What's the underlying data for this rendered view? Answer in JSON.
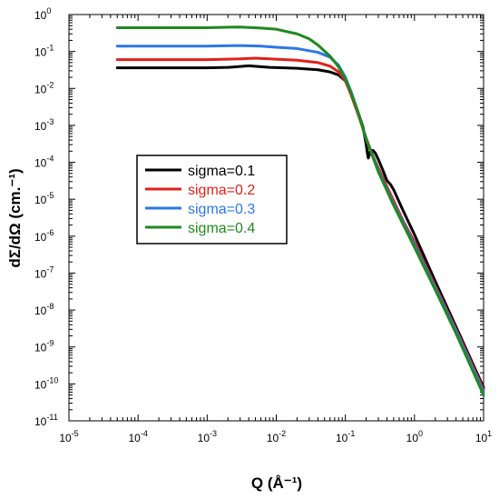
{
  "chart_data": {
    "type": "line",
    "xscale": "log",
    "yscale": "log",
    "xlim": [
      1e-05,
      10
    ],
    "ylim": [
      1e-11,
      1
    ],
    "xlabel": "Q (Å⁻¹)",
    "ylabel": "dΣ/dΩ (cm.⁻¹)",
    "grid": false,
    "legend_position": "center-left",
    "x_ticks": [
      {
        "value": 1e-05,
        "base": "10",
        "exp": "-5"
      },
      {
        "value": 0.0001,
        "base": "10",
        "exp": "-4"
      },
      {
        "value": 0.001,
        "base": "10",
        "exp": "-3"
      },
      {
        "value": 0.01,
        "base": "10",
        "exp": "-2"
      },
      {
        "value": 0.1,
        "base": "10",
        "exp": "-1"
      },
      {
        "value": 1,
        "base": "10",
        "exp": "0"
      },
      {
        "value": 10,
        "base": "10",
        "exp": "1"
      }
    ],
    "y_ticks": [
      {
        "value": 1,
        "base": "10",
        "exp": "0"
      },
      {
        "value": 0.1,
        "base": "10",
        "exp": "-1"
      },
      {
        "value": 0.01,
        "base": "10",
        "exp": "-2"
      },
      {
        "value": 0.001,
        "base": "10",
        "exp": "-3"
      },
      {
        "value": 0.0001,
        "base": "10",
        "exp": "-4"
      },
      {
        "value": 1e-05,
        "base": "10",
        "exp": "-5"
      },
      {
        "value": 1e-06,
        "base": "10",
        "exp": "-6"
      },
      {
        "value": 1e-07,
        "base": "10",
        "exp": "-7"
      },
      {
        "value": 1e-08,
        "base": "10",
        "exp": "-8"
      },
      {
        "value": 1e-09,
        "base": "10",
        "exp": "-9"
      },
      {
        "value": 1e-10,
        "base": "10",
        "exp": "-10"
      },
      {
        "value": 1e-11,
        "base": "10",
        "exp": "-11"
      }
    ],
    "series": [
      {
        "name": "sigma=0.1",
        "color": "#000000",
        "points": [
          [
            5e-05,
            0.036
          ],
          [
            0.001,
            0.036
          ],
          [
            0.002,
            0.037
          ],
          [
            0.004,
            0.041
          ],
          [
            0.008,
            0.037
          ],
          [
            0.02,
            0.035
          ],
          [
            0.04,
            0.032
          ],
          [
            0.06,
            0.028
          ],
          [
            0.08,
            0.023
          ],
          [
            0.1,
            0.016
          ],
          [
            0.12,
            0.008
          ],
          [
            0.15,
            0.0025
          ],
          [
            0.18,
            0.0009
          ],
          [
            0.2,
            0.0003
          ],
          [
            0.21,
            0.00016
          ],
          [
            0.215,
            0.00013
          ],
          [
            0.22,
            0.00015
          ],
          [
            0.23,
            0.00021
          ],
          [
            0.25,
            0.00021
          ],
          [
            0.27,
            0.00018
          ],
          [
            0.3,
            0.00012
          ],
          [
            0.35,
            6e-05
          ],
          [
            0.4,
            3.2e-05
          ],
          [
            0.45,
            2.5e-05
          ],
          [
            0.5,
            1.8e-05
          ],
          [
            0.7,
            4.5e-06
          ],
          [
            1,
            1.1e-06
          ],
          [
            2,
            6e-08
          ],
          [
            4,
            3.5e-09
          ],
          [
            10,
            8e-11
          ]
        ]
      },
      {
        "name": "sigma=0.2",
        "color": "#e0201b",
        "points": [
          [
            5e-05,
            0.06
          ],
          [
            0.001,
            0.06
          ],
          [
            0.003,
            0.063
          ],
          [
            0.005,
            0.066
          ],
          [
            0.01,
            0.062
          ],
          [
            0.02,
            0.058
          ],
          [
            0.04,
            0.05
          ],
          [
            0.06,
            0.04
          ],
          [
            0.08,
            0.028
          ],
          [
            0.1,
            0.016
          ],
          [
            0.12,
            0.007
          ],
          [
            0.15,
            0.0022
          ],
          [
            0.2,
            0.00045
          ],
          [
            0.25,
            0.00015
          ],
          [
            0.3,
            7e-05
          ],
          [
            0.4,
            2.2e-05
          ],
          [
            0.5,
            9e-06
          ],
          [
            0.7,
            2.4e-06
          ],
          [
            1,
            7e-07
          ],
          [
            2,
            4.5e-08
          ],
          [
            4,
            3e-09
          ],
          [
            10,
            7e-11
          ]
        ]
      },
      {
        "name": "sigma=0.3",
        "color": "#2b78e4",
        "points": [
          [
            5e-05,
            0.14
          ],
          [
            0.001,
            0.14
          ],
          [
            0.003,
            0.145
          ],
          [
            0.006,
            0.14
          ],
          [
            0.01,
            0.13
          ],
          [
            0.02,
            0.12
          ],
          [
            0.04,
            0.095
          ],
          [
            0.06,
            0.07
          ],
          [
            0.08,
            0.042
          ],
          [
            0.1,
            0.02
          ],
          [
            0.12,
            0.0085
          ],
          [
            0.15,
            0.0025
          ],
          [
            0.2,
            0.00042
          ],
          [
            0.3,
            6e-05
          ],
          [
            0.5,
            7.5e-06
          ],
          [
            1,
            5.8e-07
          ],
          [
            2,
            4e-08
          ],
          [
            4,
            2.7e-09
          ],
          [
            10,
            6e-11
          ]
        ]
      },
      {
        "name": "sigma=0.4",
        "color": "#1f8a1f",
        "points": [
          [
            5e-05,
            0.44
          ],
          [
            0.001,
            0.44
          ],
          [
            0.003,
            0.46
          ],
          [
            0.006,
            0.43
          ],
          [
            0.01,
            0.4
          ],
          [
            0.02,
            0.3
          ],
          [
            0.03,
            0.22
          ],
          [
            0.04,
            0.15
          ],
          [
            0.06,
            0.075
          ],
          [
            0.08,
            0.038
          ],
          [
            0.1,
            0.018
          ],
          [
            0.12,
            0.008
          ],
          [
            0.15,
            0.0025
          ],
          [
            0.2,
            0.00042
          ],
          [
            0.3,
            5.5e-05
          ],
          [
            0.5,
            6.8e-06
          ],
          [
            1,
            5e-07
          ],
          [
            2,
            3.5e-08
          ],
          [
            4,
            2.3e-09
          ],
          [
            10,
            5e-11
          ]
        ]
      }
    ]
  }
}
